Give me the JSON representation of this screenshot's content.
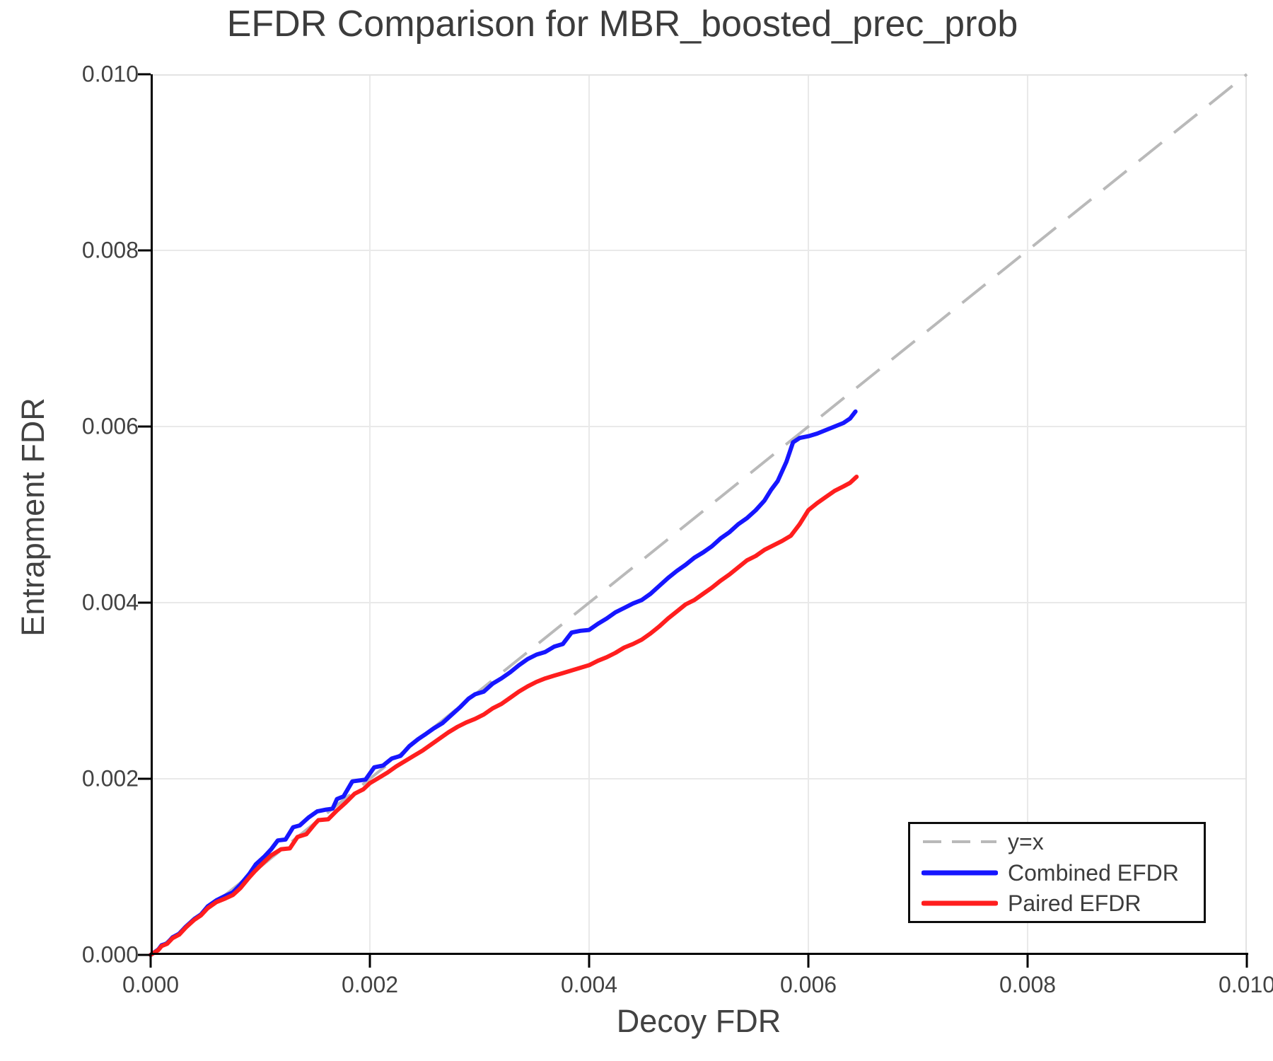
{
  "accent_colors": {
    "combined_line": "#1616ff",
    "paired_line": "#ff1e1e",
    "diagonal_line": "#b9b9b9",
    "grid_line": "#e9e9e9",
    "frame_line": "#e3e3e3",
    "spine_line": "#000000",
    "text": "#3c3c3c"
  },
  "chart_data": {
    "type": "line",
    "title": "EFDR Comparison for MBR_boosted_prec_prob",
    "xlabel": "Decoy FDR",
    "ylabel": "Entrapment FDR",
    "xlim": [
      0.0,
      0.01
    ],
    "ylim": [
      0.0,
      0.01
    ],
    "x_ticks": [
      0.0,
      0.002,
      0.004,
      0.006,
      0.008,
      0.01
    ],
    "x_tick_labels": [
      "0.000",
      "0.002",
      "0.004",
      "0.006",
      "0.008",
      "0.010"
    ],
    "y_ticks": [
      0.0,
      0.002,
      0.004,
      0.006,
      0.008,
      0.01
    ],
    "y_tick_labels": [
      "0.000",
      "0.002",
      "0.004",
      "0.006",
      "0.008",
      "0.010"
    ],
    "grid": true,
    "legend_position": "bottom-right",
    "diagonal": {
      "label": "y=x",
      "style": "dashed",
      "color": "#b9b9b9",
      "from": [
        0.0,
        0.0
      ],
      "to": [
        0.01,
        0.01
      ]
    },
    "series": [
      {
        "name": "Combined EFDR",
        "color": "#1616ff",
        "points": [
          [
            0.0,
            0.0
          ],
          [
            7e-05,
            6e-05
          ],
          [
            0.0001,
            0.00011
          ],
          [
            0.00015,
            0.00013
          ],
          [
            0.0002,
            0.0002
          ],
          [
            0.00026,
            0.00024
          ],
          [
            0.00032,
            0.00032
          ],
          [
            0.0004,
            0.00041
          ],
          [
            0.00046,
            0.00046
          ],
          [
            0.00052,
            0.00055
          ],
          [
            0.0006,
            0.00062
          ],
          [
            0.00068,
            0.00067
          ],
          [
            0.00075,
            0.00071
          ],
          [
            0.00082,
            0.0008
          ],
          [
            0.0009,
            0.00092
          ],
          [
            0.00096,
            0.00103
          ],
          [
            0.00104,
            0.00112
          ],
          [
            0.0011,
            0.0012
          ],
          [
            0.00116,
            0.0013
          ],
          [
            0.00123,
            0.00131
          ],
          [
            0.0013,
            0.00145
          ],
          [
            0.00136,
            0.00147
          ],
          [
            0.00144,
            0.00156
          ],
          [
            0.00152,
            0.00163
          ],
          [
            0.0016,
            0.00165
          ],
          [
            0.00166,
            0.00166
          ],
          [
            0.0017,
            0.00177
          ],
          [
            0.00176,
            0.0018
          ],
          [
            0.00184,
            0.00197
          ],
          [
            0.00196,
            0.00199
          ],
          [
            0.00204,
            0.00213
          ],
          [
            0.00212,
            0.00215
          ],
          [
            0.0022,
            0.00223
          ],
          [
            0.00228,
            0.00226
          ],
          [
            0.00236,
            0.00237
          ],
          [
            0.00244,
            0.00245
          ],
          [
            0.0025,
            0.0025
          ],
          [
            0.00258,
            0.00257
          ],
          [
            0.00266,
            0.00263
          ],
          [
            0.00274,
            0.00272
          ],
          [
            0.00282,
            0.00281
          ],
          [
            0.0029,
            0.00291
          ],
          [
            0.00296,
            0.00296
          ],
          [
            0.00304,
            0.00299
          ],
          [
            0.00312,
            0.00308
          ],
          [
            0.0032,
            0.00314
          ],
          [
            0.00328,
            0.00321
          ],
          [
            0.00336,
            0.00329
          ],
          [
            0.00344,
            0.00336
          ],
          [
            0.00352,
            0.00341
          ],
          [
            0.0036,
            0.00344
          ],
          [
            0.00368,
            0.0035
          ],
          [
            0.00376,
            0.00353
          ],
          [
            0.00384,
            0.00366
          ],
          [
            0.00392,
            0.00368
          ],
          [
            0.004,
            0.00369
          ],
          [
            0.00408,
            0.00376
          ],
          [
            0.00416,
            0.00382
          ],
          [
            0.00424,
            0.00389
          ],
          [
            0.00432,
            0.00394
          ],
          [
            0.0044,
            0.00399
          ],
          [
            0.00448,
            0.00403
          ],
          [
            0.00456,
            0.0041
          ],
          [
            0.00464,
            0.00419
          ],
          [
            0.00472,
            0.00428
          ],
          [
            0.0048,
            0.00436
          ],
          [
            0.00488,
            0.00443
          ],
          [
            0.00496,
            0.00451
          ],
          [
            0.00504,
            0.00457
          ],
          [
            0.00512,
            0.00464
          ],
          [
            0.0052,
            0.00473
          ],
          [
            0.00528,
            0.0048
          ],
          [
            0.00536,
            0.00489
          ],
          [
            0.00544,
            0.00496
          ],
          [
            0.00552,
            0.00505
          ],
          [
            0.0056,
            0.00516
          ],
          [
            0.00566,
            0.00528
          ],
          [
            0.00572,
            0.00538
          ],
          [
            0.0058,
            0.0056
          ],
          [
            0.00586,
            0.00582
          ],
          [
            0.00592,
            0.00587
          ],
          [
            0.006,
            0.00589
          ],
          [
            0.00608,
            0.00592
          ],
          [
            0.00616,
            0.00596
          ],
          [
            0.00624,
            0.006
          ],
          [
            0.00632,
            0.00604
          ],
          [
            0.00638,
            0.00609
          ],
          [
            0.00643,
            0.00617
          ]
        ]
      },
      {
        "name": "Paired EFDR",
        "color": "#ff1e1e",
        "points": [
          [
            0.0,
            0.0
          ],
          [
            7e-05,
            5.5e-05
          ],
          [
            0.0001,
            0.0001
          ],
          [
            0.00015,
            0.000125
          ],
          [
            0.0002,
            0.00019
          ],
          [
            0.00026,
            0.00023
          ],
          [
            0.00032,
            0.00031
          ],
          [
            0.0004,
            0.0004
          ],
          [
            0.00046,
            0.00045
          ],
          [
            0.00052,
            0.00053
          ],
          [
            0.0006,
            0.0006
          ],
          [
            0.00068,
            0.00064
          ],
          [
            0.00075,
            0.00068
          ],
          [
            0.00082,
            0.00076
          ],
          [
            0.0009,
            0.00088
          ],
          [
            0.00095,
            0.00095
          ],
          [
            0.00104,
            0.00106
          ],
          [
            0.0011,
            0.00113
          ],
          [
            0.00119,
            0.0012
          ],
          [
            0.00127,
            0.00121
          ],
          [
            0.00134,
            0.00134
          ],
          [
            0.00142,
            0.00137
          ],
          [
            0.0015,
            0.00149
          ],
          [
            0.00153,
            0.00153
          ],
          [
            0.00162,
            0.00154
          ],
          [
            0.0017,
            0.00164
          ],
          [
            0.00178,
            0.00173
          ],
          [
            0.00186,
            0.00183
          ],
          [
            0.00194,
            0.00188
          ],
          [
            0.002,
            0.00195
          ],
          [
            0.00208,
            0.00201
          ],
          [
            0.00216,
            0.00207
          ],
          [
            0.00224,
            0.00214
          ],
          [
            0.00232,
            0.0022
          ],
          [
            0.0024,
            0.00226
          ],
          [
            0.00248,
            0.00232
          ],
          [
            0.00256,
            0.00239
          ],
          [
            0.00264,
            0.00246
          ],
          [
            0.00272,
            0.00253
          ],
          [
            0.0028,
            0.00259
          ],
          [
            0.00288,
            0.00264
          ],
          [
            0.00296,
            0.00268
          ],
          [
            0.00304,
            0.00273
          ],
          [
            0.00312,
            0.0028
          ],
          [
            0.0032,
            0.00285
          ],
          [
            0.00328,
            0.00292
          ],
          [
            0.00336,
            0.00299
          ],
          [
            0.00344,
            0.00305
          ],
          [
            0.00352,
            0.0031
          ],
          [
            0.0036,
            0.00314
          ],
          [
            0.00368,
            0.00317
          ],
          [
            0.00376,
            0.0032
          ],
          [
            0.00384,
            0.00323
          ],
          [
            0.00392,
            0.00326
          ],
          [
            0.004,
            0.00329
          ],
          [
            0.00408,
            0.00334
          ],
          [
            0.00416,
            0.00338
          ],
          [
            0.00424,
            0.00343
          ],
          [
            0.00432,
            0.00349
          ],
          [
            0.0044,
            0.00353
          ],
          [
            0.00448,
            0.00358
          ],
          [
            0.00456,
            0.00365
          ],
          [
            0.00464,
            0.00373
          ],
          [
            0.00472,
            0.00382
          ],
          [
            0.0048,
            0.0039
          ],
          [
            0.00488,
            0.00398
          ],
          [
            0.00496,
            0.00403
          ],
          [
            0.00504,
            0.0041
          ],
          [
            0.00512,
            0.00417
          ],
          [
            0.0052,
            0.00425
          ],
          [
            0.00528,
            0.00432
          ],
          [
            0.00536,
            0.0044
          ],
          [
            0.00544,
            0.00448
          ],
          [
            0.00552,
            0.00453
          ],
          [
            0.0056,
            0.0046
          ],
          [
            0.00568,
            0.00465
          ],
          [
            0.00576,
            0.0047
          ],
          [
            0.00584,
            0.00476
          ],
          [
            0.00592,
            0.00489
          ],
          [
            0.006,
            0.00505
          ],
          [
            0.00608,
            0.00513
          ],
          [
            0.00616,
            0.0052
          ],
          [
            0.00624,
            0.00527
          ],
          [
            0.00632,
            0.00532
          ],
          [
            0.00638,
            0.00536
          ],
          [
            0.00644,
            0.00543
          ]
        ]
      }
    ]
  },
  "legend": {
    "diagonal_label": "y=x",
    "combined_label": "Combined EFDR",
    "paired_label": "Paired EFDR"
  }
}
